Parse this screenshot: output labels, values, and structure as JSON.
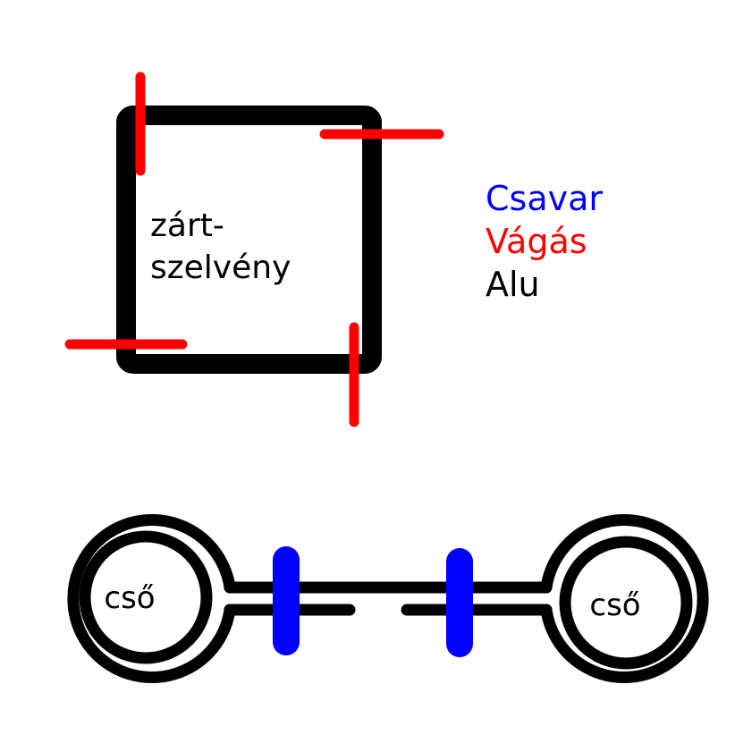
{
  "square": {
    "label_line1": "zárt-",
    "label_line2": "szelvény"
  },
  "legend": {
    "items": [
      {
        "label": "Csavar",
        "color": "#0000ff"
      },
      {
        "label": "Vágás",
        "color": "#ff0000"
      },
      {
        "label": "Alu",
        "color": "#000000"
      }
    ]
  },
  "pipes": {
    "left_label": "cső",
    "right_label": "cső"
  },
  "colors": {
    "aluminium": "#000000",
    "cut": "#ff0000",
    "screw": "#0000ff",
    "background": "#ffffff"
  }
}
